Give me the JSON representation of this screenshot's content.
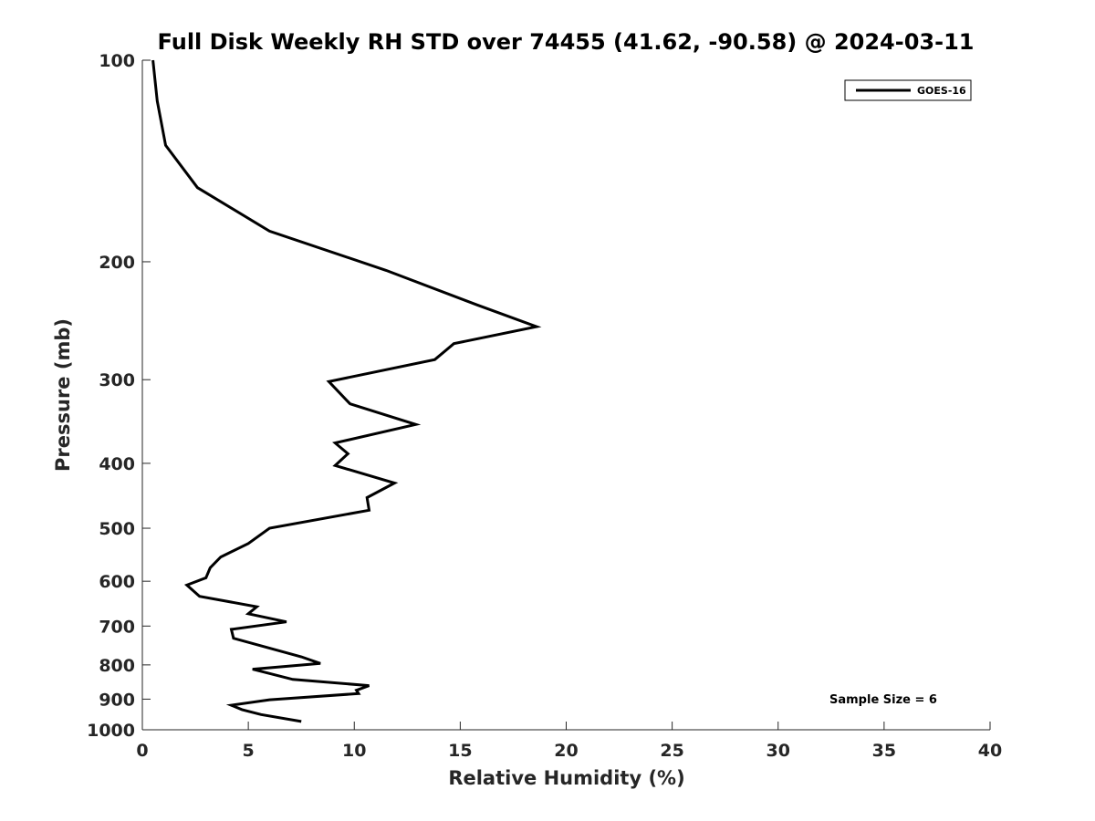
{
  "chart_data": {
    "type": "line",
    "title": "Full Disk Weekly RH STD over 74455 (41.62, -90.58) @ 2024-03-11",
    "xlabel": "Relative Humidity (%)",
    "ylabel": "Pressure (mb)",
    "xlim": [
      0,
      40
    ],
    "ylim": [
      100,
      1000
    ],
    "y_scale": "log",
    "y_reversed": true,
    "grid": false,
    "x_ticks": [
      0,
      5,
      10,
      15,
      20,
      25,
      30,
      35,
      40
    ],
    "y_ticks": [
      100,
      200,
      300,
      400,
      500,
      600,
      700,
      800,
      900,
      1000
    ],
    "legend": {
      "position": "top-right",
      "entries": [
        "GOES-16"
      ]
    },
    "annotation": "Sample Size = 6",
    "series": [
      {
        "name": "GOES-16",
        "color": "#000000",
        "x": [
          0.5,
          0.7,
          1.1,
          2.6,
          6.0,
          11.5,
          15.8,
          18.6,
          14.7,
          13.8,
          8.8,
          9.8,
          12.9,
          9.1,
          9.7,
          9.1,
          11.9,
          10.6,
          10.7,
          6.0,
          5.0,
          3.7,
          3.2,
          3.0,
          2.1,
          2.7,
          5.4,
          5.0,
          6.8,
          4.2,
          4.3,
          7.5,
          8.4,
          5.2,
          7.1,
          10.7,
          10.1,
          10.2,
          6.0,
          4.2,
          4.7,
          5.6,
          7.5
        ],
        "y": [
          100,
          115,
          134,
          155,
          180,
          206,
          232,
          250,
          265,
          280,
          302,
          326,
          350,
          373,
          387,
          403,
          428,
          450,
          470,
          500,
          527,
          552,
          573,
          593,
          608,
          632,
          655,
          671,
          690,
          708,
          730,
          778,
          796,
          812,
          841,
          859,
          873,
          883,
          902,
          919,
          933,
          949,
          972
        ]
      }
    ]
  }
}
